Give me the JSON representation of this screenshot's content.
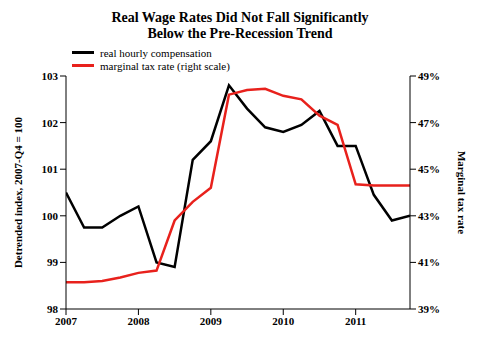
{
  "chart_data": {
    "type": "line",
    "title": "Real Wage Rates Did Not Fall Significantly Below the Pre-Recession Trend",
    "title_lines": [
      "Real Wage Rates Did Not Fall Significantly",
      "Below the Pre-Recession Trend"
    ],
    "ylabel": "Detrended index, 2007-Q4 = 100",
    "y2label": "Marginal tax rate",
    "x": [
      2007,
      2007.25,
      2007.5,
      2007.75,
      2008,
      2008.25,
      2008.5,
      2008.75,
      2009,
      2009.25,
      2009.5,
      2009.75,
      2010,
      2010.25,
      2010.5,
      2010.75,
      2011,
      2011.25,
      2011.5,
      2011.75
    ],
    "series": [
      {
        "name": "real hourly compensation",
        "color": "#000000",
        "values": [
          100.5,
          99.75,
          99.75,
          100.0,
          100.2,
          99.0,
          98.9,
          101.2,
          101.6,
          102.8,
          102.3,
          101.9,
          101.8,
          101.95,
          102.25,
          101.5,
          101.5,
          100.45,
          99.9,
          100.0
        ]
      },
      {
        "name": "marginal tax rate (right scale)",
        "color": "#e8211c",
        "axis": "y2",
        "values": [
          40.15,
          40.15,
          40.2,
          40.35,
          40.55,
          40.65,
          42.8,
          43.6,
          44.2,
          48.2,
          48.4,
          48.45,
          48.15,
          48.0,
          47.3,
          46.9,
          44.35,
          44.3,
          44.3,
          44.3
        ]
      }
    ],
    "xlim": [
      2007,
      2011.75
    ],
    "xticks": [
      2007,
      2008,
      2009,
      2010,
      2011
    ],
    "ylim": [
      98,
      103
    ],
    "yticks": [
      98,
      99,
      100,
      101,
      102,
      103
    ],
    "y2lim": [
      39,
      49
    ],
    "y2ticks": [
      {
        "value": 39,
        "label": "39%"
      },
      {
        "value": 41,
        "label": "41%"
      },
      {
        "value": 43,
        "label": "43%"
      },
      {
        "value": 45,
        "label": "45%"
      },
      {
        "value": 47,
        "label": "47%"
      },
      {
        "value": 49,
        "label": "49%"
      }
    ],
    "grid": false,
    "legend": "top-left"
  }
}
